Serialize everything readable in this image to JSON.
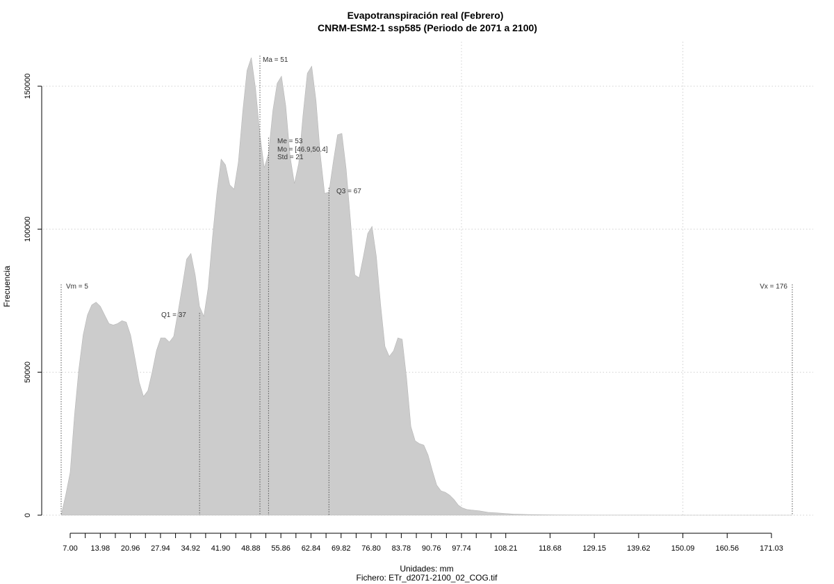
{
  "chart_data": {
    "type": "area",
    "title": "Evapotranspiración real (Febrero)",
    "subtitle": "CNRM-ESM2-1 ssp585 (Periodo de 2071 a 2100)",
    "xlabel": "Unidades: mm",
    "caption": "Fichero: ETr_d2071-2100_02_COG.tif",
    "ylabel": "Frecuencia",
    "xlim": [
      5,
      176
    ],
    "ylim": [
      0,
      150000
    ],
    "x_ticks": [
      "7.00",
      "13.98",
      "20.96",
      "27.94",
      "34.92",
      "41.90",
      "48.88",
      "55.86",
      "62.84",
      "69.82",
      "76.80",
      "83.78",
      "90.76",
      "97.74",
      "108.21",
      "118.68",
      "129.15",
      "139.62",
      "150.09",
      "160.56",
      "171.03"
    ],
    "x_minor_ticks": [
      10.49,
      17.47,
      24.45,
      31.43,
      38.41,
      45.39,
      52.37,
      59.35,
      66.33,
      73.31,
      80.29,
      87.27,
      94.25,
      101.23,
      104.72
    ],
    "y_ticks": [
      "0",
      "50000",
      "100000",
      "150000"
    ],
    "y_tick_values": [
      0,
      50000,
      100000,
      150000
    ],
    "grid": true,
    "x": [
      5,
      6,
      7,
      8,
      9,
      10,
      11,
      12,
      13,
      14,
      15,
      16,
      17,
      18,
      19,
      20,
      21,
      22,
      23,
      24,
      25,
      26,
      27,
      28,
      29,
      30,
      31,
      32,
      33,
      34,
      35,
      36,
      37,
      38,
      39,
      40,
      41,
      42,
      43,
      44,
      45,
      46,
      47,
      48,
      49,
      50,
      51,
      52,
      53,
      54,
      55,
      56,
      57,
      58,
      59,
      60,
      61,
      62,
      63,
      64,
      65,
      66,
      67,
      68,
      69,
      70,
      71,
      72,
      73,
      74,
      75,
      76,
      77,
      78,
      79,
      80,
      81,
      82,
      83,
      84,
      85,
      86,
      87,
      88,
      89,
      90,
      91,
      92,
      93,
      94,
      95,
      96,
      97,
      98,
      99,
      100,
      102,
      104,
      106,
      108,
      110,
      112,
      114,
      116,
      118,
      120,
      125,
      130,
      140,
      150,
      160,
      170,
      176
    ],
    "y": [
      0,
      7000,
      15000,
      35000,
      51000,
      63000,
      70000,
      73500,
      74500,
      73000,
      70000,
      67000,
      66500,
      67000,
      68000,
      67500,
      63000,
      55000,
      46500,
      41500,
      43500,
      50000,
      57500,
      62000,
      62000,
      60500,
      62500,
      71000,
      80000,
      89500,
      91500,
      84000,
      73000,
      69500,
      79500,
      97000,
      112500,
      124500,
      122500,
      115500,
      114000,
      123500,
      141000,
      155500,
      160000,
      149000,
      133000,
      121500,
      126500,
      141500,
      151000,
      153500,
      143000,
      125500,
      116000,
      123000,
      140000,
      154500,
      157000,
      145000,
      126000,
      112500,
      113000,
      123500,
      133000,
      133500,
      121000,
      103000,
      84000,
      83000,
      90500,
      98500,
      101000,
      90500,
      73500,
      59000,
      55500,
      57500,
      62000,
      61500,
      48000,
      31000,
      26000,
      25000,
      24500,
      21000,
      15500,
      10500,
      8500,
      8000,
      7000,
      5500,
      3500,
      2500,
      2000,
      1800,
      1500,
      1000,
      800,
      600,
      400,
      300,
      200,
      150,
      100,
      80,
      50,
      30,
      20,
      10,
      5,
      3,
      0
    ],
    "stats": [
      {
        "label": "Vm = 5",
        "x": 5
      },
      {
        "label": "Q1 = 37",
        "x": 37
      },
      {
        "label": "Ma = 51",
        "x": 51
      },
      {
        "label": "Me = 53",
        "x": 53
      },
      {
        "label": "Q3 = 67",
        "x": 67
      },
      {
        "label": "Vx = 176",
        "x": 176
      }
    ],
    "annotations": [
      "Mo = [46.9,50.4]",
      "Std = 21"
    ]
  }
}
